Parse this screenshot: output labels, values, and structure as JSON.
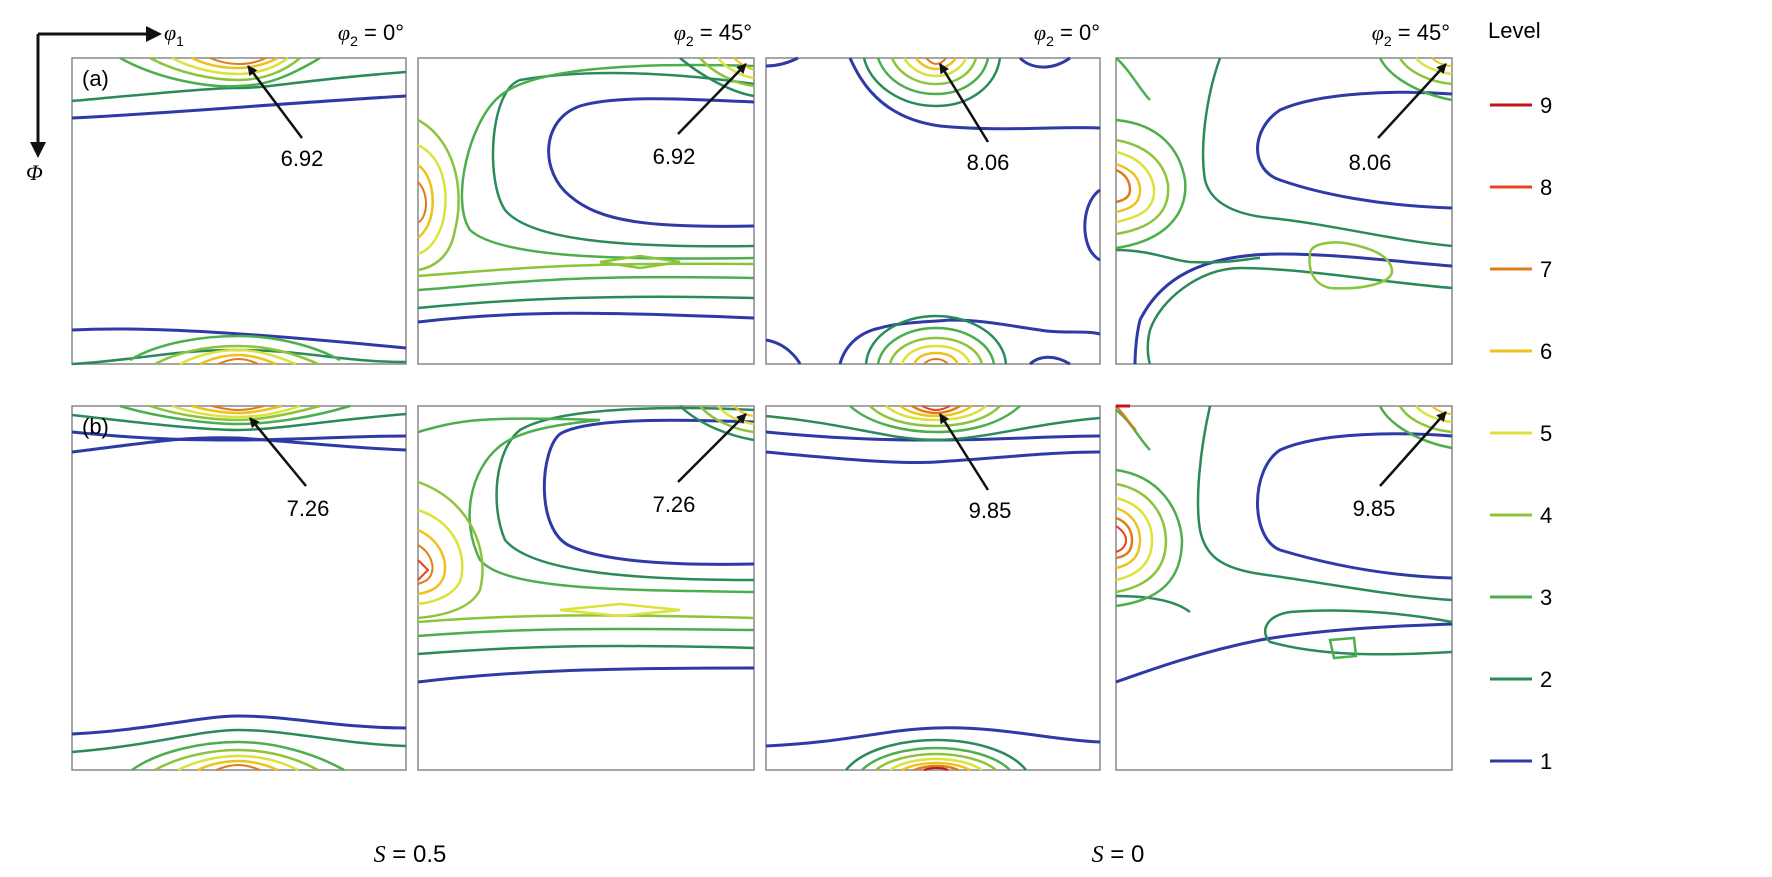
{
  "axes": {
    "horizontal_symbol": "φ",
    "horizontal_subscript": "1",
    "vertical_symbol": "Φ"
  },
  "columns": [
    {
      "phi2_prefix": "φ",
      "phi2_sub": "2",
      "phi2_value": " = 0°"
    },
    {
      "phi2_prefix": "φ",
      "phi2_sub": "2",
      "phi2_value": " = 45°"
    },
    {
      "phi2_prefix": "φ",
      "phi2_sub": "2",
      "phi2_value": " = 0°"
    },
    {
      "phi2_prefix": "φ",
      "phi2_sub": "2",
      "phi2_value": " = 45°"
    }
  ],
  "rows": [
    {
      "label": "(a)"
    },
    {
      "label": "(b)"
    }
  ],
  "annotations": {
    "row_a": [
      "6.92",
      "6.92",
      "8.06",
      "8.06"
    ],
    "row_b": [
      "7.26",
      "7.26",
      "9.85",
      "9.85"
    ]
  },
  "bottom_labels": [
    {
      "symbol": "S",
      "text": " = 0.5"
    },
    {
      "symbol": "S",
      "text": " = 0"
    }
  ],
  "legend": {
    "title": "Level",
    "levels": [
      {
        "value": "9",
        "color": "#c0141b"
      },
      {
        "value": "8",
        "color": "#e8431c"
      },
      {
        "value": "7",
        "color": "#e07b1a"
      },
      {
        "value": "6",
        "color": "#eec21c"
      },
      {
        "value": "5",
        "color": "#dbe23a"
      },
      {
        "value": "4",
        "color": "#8cc43c"
      },
      {
        "value": "3",
        "color": "#4cae4c"
      },
      {
        "value": "2",
        "color": "#2a8a5a"
      },
      {
        "value": "1",
        "color": "#2e3aa6"
      }
    ]
  }
}
